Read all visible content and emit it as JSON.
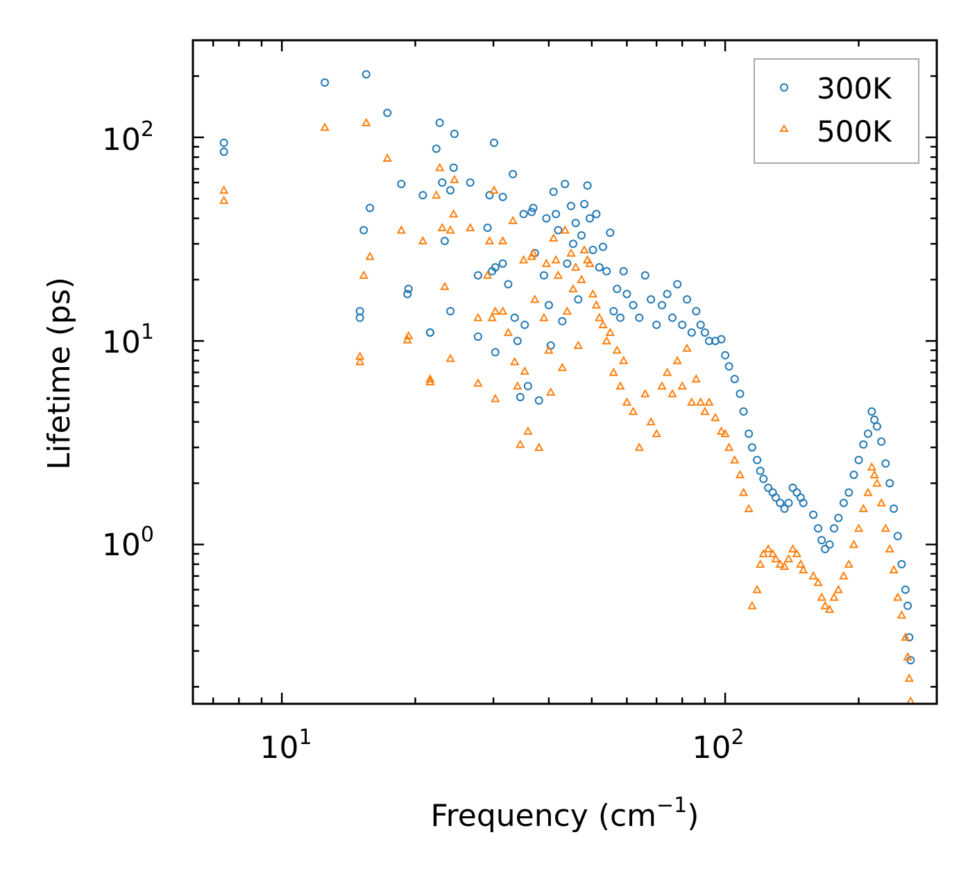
{
  "chart_data": {
    "type": "scatter",
    "xscale": "log",
    "yscale": "log",
    "xlim": [
      6.3,
      300
    ],
    "ylim": [
      0.165,
      300
    ],
    "xlabel": "Frequency (cm",
    "xlabel_sup": "−1",
    "xlabel_close": ")",
    "ylabel": "Lifetime (ps)",
    "xticks": [
      {
        "base": "10",
        "exp": "1",
        "value": 10
      },
      {
        "base": "10",
        "exp": "2",
        "value": 100
      }
    ],
    "yticks": [
      {
        "base": "10",
        "exp": "0",
        "value": 1
      },
      {
        "base": "10",
        "exp": "1",
        "value": 10
      },
      {
        "base": "10",
        "exp": "2",
        "value": 100
      }
    ],
    "legend_position": "top-right",
    "series": [
      {
        "name": "300K",
        "marker": "circle",
        "color": "#1f77b4",
        "points": [
          [
            7.4,
            94
          ],
          [
            7.4,
            85
          ],
          [
            12.5,
            186
          ],
          [
            15.5,
            204
          ],
          [
            17.3,
            132
          ],
          [
            15.0,
            14
          ],
          [
            15.0,
            13
          ],
          [
            15.3,
            35
          ],
          [
            15.8,
            45
          ],
          [
            18.6,
            59
          ],
          [
            19.3,
            18
          ],
          [
            19.2,
            17
          ],
          [
            20.8,
            52
          ],
          [
            21.6,
            11
          ],
          [
            21.6,
            11
          ],
          [
            22.3,
            88
          ],
          [
            22.7,
            118
          ],
          [
            23.0,
            60
          ],
          [
            23.3,
            31
          ],
          [
            24.0,
            55
          ],
          [
            24.4,
            71
          ],
          [
            24.5,
            104
          ],
          [
            24.0,
            14
          ],
          [
            26.6,
            60
          ],
          [
            27.7,
            21
          ],
          [
            27.7,
            10.5
          ],
          [
            29.1,
            36
          ],
          [
            29.4,
            52
          ],
          [
            29.8,
            22
          ],
          [
            30.1,
            94
          ],
          [
            30.3,
            23
          ],
          [
            30.3,
            8.8
          ],
          [
            31.5,
            24
          ],
          [
            31.5,
            51
          ],
          [
            32.4,
            19
          ],
          [
            33.2,
            66
          ],
          [
            33.5,
            13
          ],
          [
            34.0,
            10
          ],
          [
            34.5,
            5.3
          ],
          [
            35.1,
            42
          ],
          [
            35.3,
            12
          ],
          [
            35.9,
            6
          ],
          [
            36.6,
            43
          ],
          [
            36.9,
            45
          ],
          [
            37.2,
            27
          ],
          [
            38.0,
            5.1
          ],
          [
            39.0,
            21
          ],
          [
            39.5,
            40
          ],
          [
            40.0,
            15
          ],
          [
            40.4,
            9.5
          ],
          [
            41.0,
            54
          ],
          [
            41.5,
            42
          ],
          [
            42.0,
            35
          ],
          [
            42.9,
            12.5
          ],
          [
            43.5,
            59
          ],
          [
            44.0,
            24
          ],
          [
            44.9,
            46
          ],
          [
            45.4,
            30
          ],
          [
            46.0,
            38
          ],
          [
            46.6,
            16
          ],
          [
            47.4,
            33
          ],
          [
            48.1,
            47
          ],
          [
            48.9,
            58
          ],
          [
            49.5,
            40
          ],
          [
            50.3,
            28
          ],
          [
            51.2,
            42
          ],
          [
            52.0,
            23
          ],
          [
            53.0,
            29
          ],
          [
            54.0,
            22
          ],
          [
            55.0,
            34
          ],
          [
            56.0,
            14
          ],
          [
            57.0,
            18
          ],
          [
            58.0,
            13
          ],
          [
            59.0,
            22
          ],
          [
            60.0,
            17
          ],
          [
            62.0,
            15
          ],
          [
            64.0,
            13
          ],
          [
            66.0,
            21
          ],
          [
            68.0,
            16
          ],
          [
            70.0,
            12
          ],
          [
            72.0,
            15
          ],
          [
            74.0,
            17
          ],
          [
            76.0,
            13
          ],
          [
            78.0,
            19
          ],
          [
            80.0,
            12
          ],
          [
            82.0,
            16
          ],
          [
            84.0,
            11
          ],
          [
            86.0,
            14
          ],
          [
            88.0,
            12
          ],
          [
            90.0,
            11
          ],
          [
            92.0,
            10
          ],
          [
            95.0,
            10
          ],
          [
            98.0,
            10.2
          ],
          [
            100.0,
            8.5
          ],
          [
            102.0,
            7.5
          ],
          [
            105.0,
            6.5
          ],
          [
            108.0,
            5.5
          ],
          [
            110.0,
            4.5
          ],
          [
            113.0,
            3.5
          ],
          [
            115.0,
            3.0
          ],
          [
            118.0,
            2.6
          ],
          [
            120.0,
            2.3
          ],
          [
            122.0,
            2.1
          ],
          [
            125.0,
            1.9
          ],
          [
            128.0,
            1.8
          ],
          [
            130.0,
            1.7
          ],
          [
            133.0,
            1.6
          ],
          [
            136.0,
            1.5
          ],
          [
            139.0,
            1.6
          ],
          [
            142.0,
            1.9
          ],
          [
            145.0,
            1.8
          ],
          [
            148.0,
            1.7
          ],
          [
            150.0,
            1.6
          ],
          [
            158.0,
            1.4
          ],
          [
            162.0,
            1.2
          ],
          [
            165.0,
            1.05
          ],
          [
            168.0,
            0.95
          ],
          [
            172.0,
            1.0
          ],
          [
            176.0,
            1.2
          ],
          [
            180.0,
            1.35
          ],
          [
            185.0,
            1.6
          ],
          [
            190.0,
            1.8
          ],
          [
            195.0,
            2.2
          ],
          [
            200.0,
            2.6
          ],
          [
            205.0,
            3.1
          ],
          [
            210.0,
            3.5
          ],
          [
            214.0,
            4.5
          ],
          [
            217.0,
            4.1
          ],
          [
            220.0,
            3.8
          ],
          [
            225.0,
            3.2
          ],
          [
            230.0,
            2.5
          ],
          [
            235.0,
            2.0
          ],
          [
            240.0,
            1.5
          ],
          [
            245.0,
            1.1
          ],
          [
            250.0,
            0.8
          ],
          [
            255.0,
            0.6
          ],
          [
            258.0,
            0.5
          ],
          [
            260.0,
            0.35
          ],
          [
            262.0,
            0.27
          ]
        ]
      },
      {
        "name": "500K",
        "marker": "triangle",
        "color": "#ff7f0e",
        "points": [
          [
            7.4,
            55
          ],
          [
            7.4,
            49
          ],
          [
            12.5,
            112
          ],
          [
            15.5,
            118
          ],
          [
            17.3,
            79
          ],
          [
            15.0,
            8.4
          ],
          [
            15.0,
            7.9
          ],
          [
            15.3,
            21
          ],
          [
            15.8,
            26
          ],
          [
            18.6,
            35
          ],
          [
            19.3,
            10.6
          ],
          [
            19.2,
            10.1
          ],
          [
            20.8,
            31
          ],
          [
            21.6,
            6.5
          ],
          [
            21.6,
            6.3
          ],
          [
            22.3,
            52
          ],
          [
            22.7,
            71
          ],
          [
            23.0,
            36
          ],
          [
            23.3,
            18.5
          ],
          [
            24.0,
            35
          ],
          [
            24.4,
            42
          ],
          [
            24.5,
            62
          ],
          [
            24.0,
            8.2
          ],
          [
            26.6,
            36
          ],
          [
            27.7,
            13
          ],
          [
            27.7,
            6.2
          ],
          [
            29.1,
            21
          ],
          [
            29.4,
            31
          ],
          [
            29.8,
            13
          ],
          [
            30.1,
            55
          ],
          [
            30.3,
            14
          ],
          [
            30.3,
            5.2
          ],
          [
            31.5,
            14
          ],
          [
            31.5,
            31
          ],
          [
            32.4,
            11
          ],
          [
            33.2,
            39
          ],
          [
            33.5,
            7.9
          ],
          [
            34.0,
            6
          ],
          [
            34.5,
            3.1
          ],
          [
            35.1,
            25
          ],
          [
            35.3,
            7.1
          ],
          [
            35.9,
            3.6
          ],
          [
            36.6,
            26
          ],
          [
            36.9,
            27
          ],
          [
            37.2,
            16
          ],
          [
            38.0,
            3.0
          ],
          [
            39.0,
            13
          ],
          [
            39.5,
            24
          ],
          [
            40.0,
            9
          ],
          [
            40.4,
            5.6
          ],
          [
            41.0,
            32
          ],
          [
            41.5,
            25
          ],
          [
            42.0,
            21
          ],
          [
            42.9,
            7.4
          ],
          [
            43.5,
            35
          ],
          [
            44.0,
            14
          ],
          [
            44.9,
            27
          ],
          [
            45.4,
            18
          ],
          [
            46.0,
            23
          ],
          [
            46.6,
            9.5
          ],
          [
            47.4,
            20
          ],
          [
            48.1,
            28
          ],
          [
            48.9,
            25
          ],
          [
            49.5,
            24
          ],
          [
            50.3,
            17
          ],
          [
            51.2,
            15
          ],
          [
            52.0,
            13
          ],
          [
            53.0,
            12
          ],
          [
            54.0,
            10
          ],
          [
            55.0,
            11
          ],
          [
            56.0,
            7
          ],
          [
            57.0,
            9
          ],
          [
            58.0,
            6
          ],
          [
            59.0,
            8
          ],
          [
            60.0,
            5
          ],
          [
            62.0,
            4.5
          ],
          [
            64.0,
            3.0
          ],
          [
            66.0,
            5.5
          ],
          [
            68.0,
            4
          ],
          [
            70.0,
            3.5
          ],
          [
            72.0,
            6
          ],
          [
            74.0,
            7
          ],
          [
            76.0,
            5.5
          ],
          [
            78.0,
            8
          ],
          [
            80.0,
            6
          ],
          [
            82.0,
            9.2
          ],
          [
            84.0,
            5
          ],
          [
            86.0,
            6.5
          ],
          [
            88.0,
            5
          ],
          [
            90.0,
            4.5
          ],
          [
            92.0,
            5
          ],
          [
            95.0,
            4.2
          ],
          [
            98.0,
            3.6
          ],
          [
            100.0,
            3.5
          ],
          [
            102.0,
            3.0
          ],
          [
            105.0,
            2.6
          ],
          [
            108.0,
            2.2
          ],
          [
            110.0,
            1.8
          ],
          [
            113.0,
            1.5
          ],
          [
            115.0,
            0.5
          ],
          [
            118.0,
            0.6
          ],
          [
            120.0,
            0.8
          ],
          [
            122.0,
            0.9
          ],
          [
            125.0,
            0.95
          ],
          [
            128.0,
            0.9
          ],
          [
            130.0,
            0.85
          ],
          [
            133.0,
            0.8
          ],
          [
            136.0,
            0.78
          ],
          [
            139.0,
            0.85
          ],
          [
            142.0,
            0.95
          ],
          [
            145.0,
            0.9
          ],
          [
            148.0,
            0.8
          ],
          [
            150.0,
            0.75
          ],
          [
            158.0,
            0.7
          ],
          [
            162.0,
            0.65
          ],
          [
            165.0,
            0.55
          ],
          [
            168.0,
            0.5
          ],
          [
            172.0,
            0.48
          ],
          [
            176.0,
            0.55
          ],
          [
            180.0,
            0.6
          ],
          [
            185.0,
            0.7
          ],
          [
            190.0,
            0.8
          ],
          [
            195.0,
            1.0
          ],
          [
            200.0,
            1.2
          ],
          [
            205.0,
            1.5
          ],
          [
            210.0,
            1.8
          ],
          [
            214.0,
            2.4
          ],
          [
            217.0,
            2.2
          ],
          [
            220.0,
            2.0
          ],
          [
            225.0,
            1.6
          ],
          [
            230.0,
            1.2
          ],
          [
            235.0,
            0.95
          ],
          [
            240.0,
            0.75
          ],
          [
            245.0,
            0.55
          ],
          [
            250.0,
            0.45
          ],
          [
            255.0,
            0.35
          ],
          [
            258.0,
            0.28
          ],
          [
            260.0,
            0.22
          ],
          [
            262.0,
            0.17
          ]
        ]
      }
    ]
  }
}
